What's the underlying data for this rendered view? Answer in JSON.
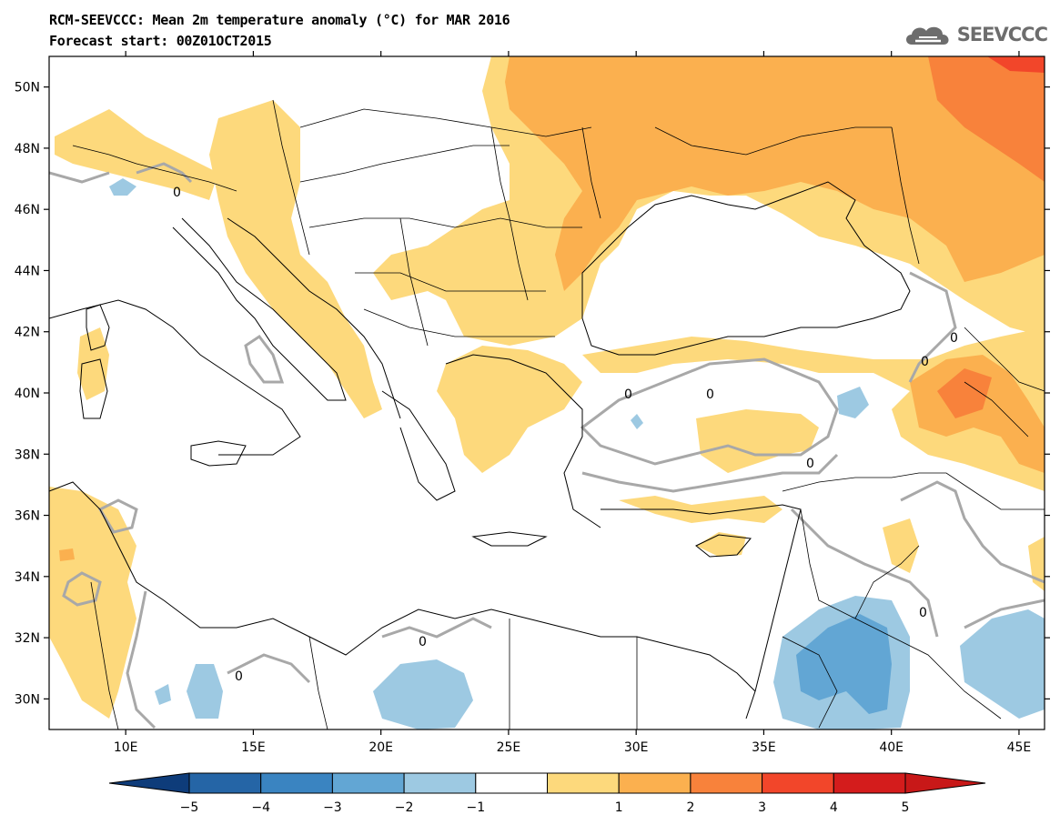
{
  "title_line1": "RCM-SEEVCCC: Mean 2m temperature anomaly (°C) for MAR 2016",
  "title_line2": "Forecast start: 00Z01OCT2015",
  "logo": {
    "icon": "cloud-logo-icon",
    "text": "SEEVCCC"
  },
  "lat_labels": [
    "50N",
    "48N",
    "46N",
    "44N",
    "42N",
    "40N",
    "38N",
    "36N",
    "34N",
    "32N",
    "30N"
  ],
  "lon_labels": [
    "10E",
    "15E",
    "20E",
    "25E",
    "30E",
    "35E",
    "40E",
    "45E"
  ],
  "contour_label": "0",
  "colorbar": {
    "ticks": [
      "-5",
      "-4",
      "-3",
      "-2",
      "-1",
      "1",
      "2",
      "3",
      "4",
      "5"
    ],
    "colors": [
      "#2565a6",
      "#3a84c1",
      "#62a6d4",
      "#9dc9e2",
      "#ffffff",
      "#fdd97c",
      "#fbb04f",
      "#f8823b",
      "#f2462a",
      "#d41c1c"
    ],
    "under_color": "#0e3c7a",
    "over_color": "#c81818"
  }
}
